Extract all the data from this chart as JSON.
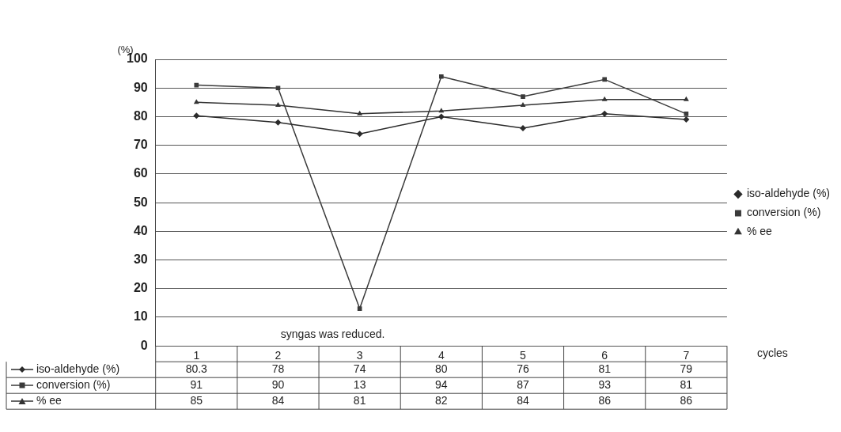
{
  "chart_data": {
    "type": "line",
    "ylabel": "(%)",
    "xlabel": "cycles",
    "categories": [
      "1",
      "2",
      "3",
      "4",
      "5",
      "6",
      "7"
    ],
    "series": [
      {
        "name": "iso-aldehyde (%)",
        "color": "#2b2b2b",
        "marker": "diamond",
        "values": [
          80.3,
          78,
          74,
          80,
          76,
          81,
          79
        ]
      },
      {
        "name": "conversion (%)",
        "color": "#3a3a3a",
        "marker": "square",
        "values": [
          91,
          90,
          13,
          94,
          87,
          93,
          81
        ]
      },
      {
        "name": "% ee",
        "color": "#333333",
        "marker": "triangle",
        "values": [
          85,
          84,
          81,
          82,
          84,
          86,
          86
        ]
      }
    ],
    "ylim": [
      0,
      100
    ],
    "yticks": [
      0,
      10,
      20,
      30,
      40,
      50,
      60,
      70,
      80,
      90,
      100
    ],
    "grid": "y",
    "legend": "right",
    "data_labels": true,
    "annotations": [
      "syngas was reduced."
    ]
  }
}
